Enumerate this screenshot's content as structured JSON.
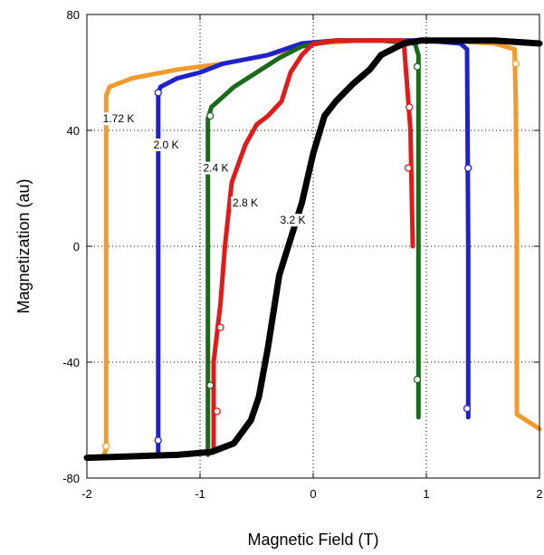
{
  "chart_data": {
    "type": "line",
    "title": "",
    "xlabel": "Magnetic Field (T)",
    "ylabel": "Magnetization (au)",
    "xlim": [
      -2,
      2
    ],
    "ylim": [
      -80,
      80
    ],
    "xticks": [
      "-2",
      "-1",
      "0",
      "1",
      "2"
    ],
    "yticks": [
      "-80",
      "-40",
      "0",
      "40",
      "80"
    ],
    "grid": "dotted at x=-1, 0, 1 and y=-40, 0, 40",
    "series": [
      {
        "name": "1.72 K",
        "color": "#f39a2b",
        "x": [
          -2.0,
          -1.86,
          -1.83,
          -1.83,
          -1.8,
          -1.6,
          -1.2,
          -0.8,
          -0.4,
          0.0,
          0.4,
          0.8,
          0.92,
          1.2,
          1.6,
          1.78,
          1.79,
          1.8,
          1.8,
          2.0
        ],
        "y": [
          -73,
          -73,
          -70,
          52,
          55,
          58,
          61,
          63,
          66,
          70,
          71,
          71,
          71,
          71,
          70,
          68,
          50,
          0,
          -58,
          -63
        ],
        "markers": [
          [
            -1.83,
            -69
          ],
          [
            1.79,
            63
          ]
        ]
      },
      {
        "name": "2.0 K",
        "color": "#1f22c8",
        "x": [
          -1.37,
          -1.37,
          -1.35,
          -1.2,
          -1.0,
          -0.8,
          -0.4,
          -0.1,
          0.2,
          0.6,
          1.0,
          1.3,
          1.36,
          1.37,
          1.37
        ],
        "y": [
          -72,
          53,
          55,
          58,
          60,
          63,
          66,
          70,
          71,
          71,
          71,
          70,
          68,
          0,
          -59
        ],
        "markers": [
          [
            -1.37,
            -67
          ],
          [
            -1.37,
            53
          ],
          [
            1.37,
            27
          ],
          [
            1.36,
            -56
          ]
        ]
      },
      {
        "name": "2.4 K",
        "color": "#1a6a1a",
        "x": [
          -0.93,
          -0.93,
          -0.9,
          -0.7,
          -0.5,
          -0.3,
          -0.1,
          0.2,
          0.6,
          0.9,
          0.93,
          0.93,
          0.93
        ],
        "y": [
          -72,
          44,
          48,
          55,
          60,
          65,
          69,
          71,
          71,
          70,
          66,
          0,
          -59
        ],
        "markers": [
          [
            -0.91,
            -48
          ],
          [
            -0.91,
            45
          ],
          [
            0.92,
            62
          ],
          [
            0.92,
            -46
          ]
        ]
      },
      {
        "name": "2.8 K",
        "color": "#e31a1a",
        "x": [
          -0.88,
          -0.88,
          -0.82,
          -0.78,
          -0.72,
          -0.6,
          -0.5,
          -0.4,
          -0.28,
          -0.2,
          -0.1,
          0.0,
          0.2,
          0.5,
          0.8,
          0.86,
          0.88
        ],
        "y": [
          -70,
          -40,
          -20,
          0,
          22,
          35,
          42,
          45,
          50,
          60,
          66,
          70,
          71,
          71,
          71,
          40,
          0
        ],
        "markers": [
          [
            -0.85,
            -57
          ],
          [
            -0.82,
            -28
          ],
          [
            0.85,
            48
          ],
          [
            0.84,
            27
          ]
        ]
      },
      {
        "name": "3.2 K",
        "color": "#000000",
        "x": [
          -2.0,
          -1.2,
          -0.9,
          -0.7,
          -0.55,
          -0.48,
          -0.4,
          -0.3,
          -0.1,
          0.0,
          0.1,
          0.2,
          0.35,
          0.5,
          0.6,
          0.8,
          0.95,
          1.2,
          1.6,
          2.0
        ],
        "y": [
          -73,
          -72,
          -71,
          -68,
          -60,
          -52,
          -35,
          -10,
          15,
          32,
          45,
          50,
          56,
          61,
          66,
          70,
          71,
          71,
          71,
          70
        ],
        "markers": []
      }
    ],
    "annotations": [
      {
        "text": "1.72 K",
        "x": -1.72,
        "y": 44
      },
      {
        "text": "2.0 K",
        "x": -1.3,
        "y": 35
      },
      {
        "text": "2.4 K",
        "x": -0.86,
        "y": 27
      },
      {
        "text": "2.8 K",
        "x": -0.6,
        "y": 15
      },
      {
        "text": "3.2 K",
        "x": -0.18,
        "y": 9
      }
    ]
  }
}
